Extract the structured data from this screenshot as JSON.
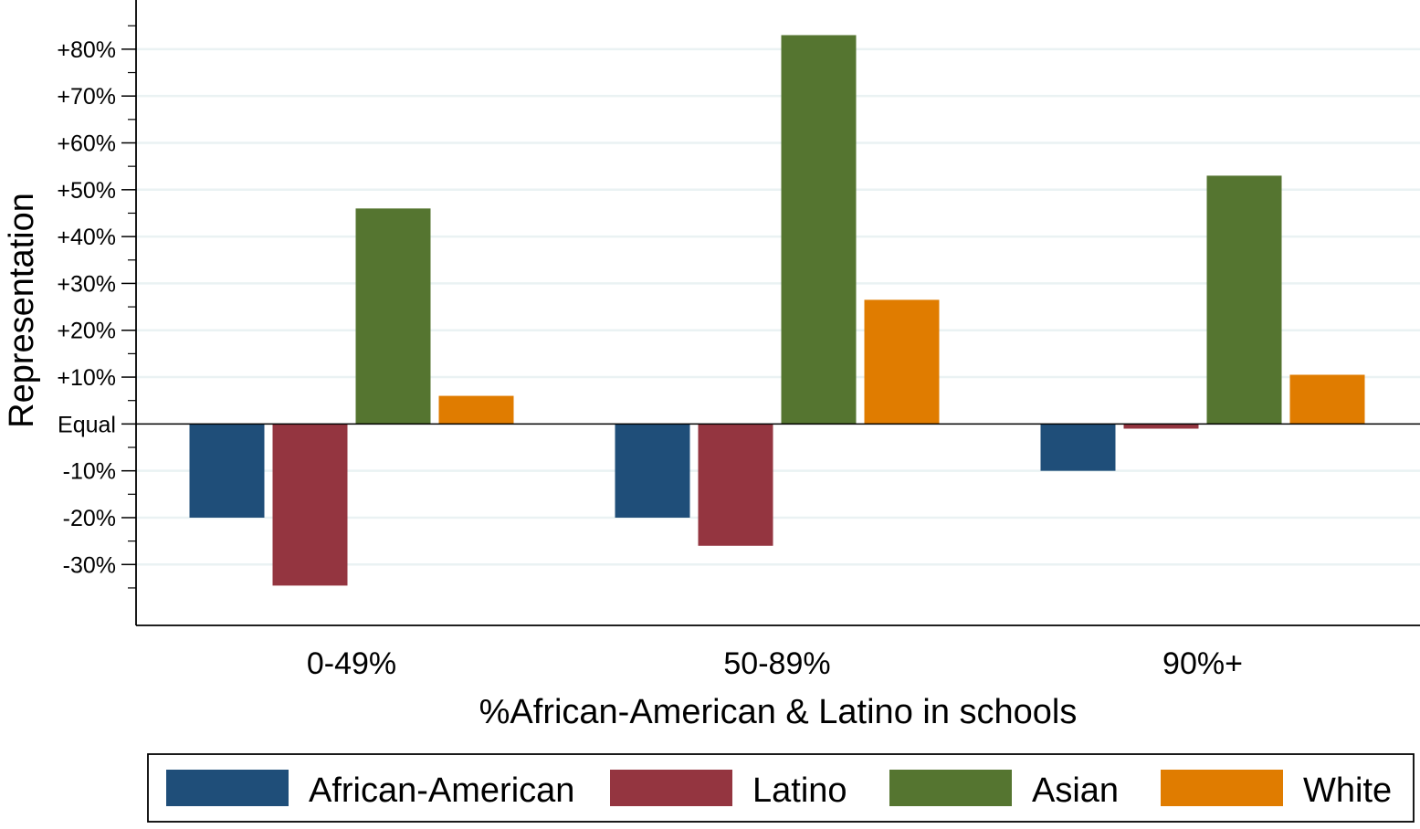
{
  "chart_data": {
    "type": "bar",
    "xlabel": "%African-American & Latino in schools",
    "ylabel": "Representation",
    "categories": [
      "0-49%",
      "50-89%",
      "90%+"
    ],
    "series": [
      {
        "name": "African-American",
        "color": "#1f4e79",
        "values": [
          -20,
          -20,
          -10
        ]
      },
      {
        "name": "Latino",
        "color": "#943540",
        "values": [
          -34.5,
          -26,
          -1
        ]
      },
      {
        "name": "Asian",
        "color": "#557530",
        "values": [
          46,
          83,
          53
        ]
      },
      {
        "name": "White",
        "color": "#e07c00",
        "values": [
          6,
          26.5,
          10.5
        ]
      }
    ],
    "yticks": [
      {
        "value": 80,
        "label": "+80%"
      },
      {
        "value": 70,
        "label": "+70%"
      },
      {
        "value": 60,
        "label": "+60%"
      },
      {
        "value": 50,
        "label": "+50%"
      },
      {
        "value": 40,
        "label": "+40%"
      },
      {
        "value": 30,
        "label": "+30%"
      },
      {
        "value": 20,
        "label": "+20%"
      },
      {
        "value": 10,
        "label": "+10%"
      },
      {
        "value": 0,
        "label": "Equal"
      },
      {
        "value": -10,
        "label": "-10%"
      },
      {
        "value": -20,
        "label": "-20%"
      },
      {
        "value": -30,
        "label": "-30%"
      }
    ],
    "ylim": [
      -43,
      90.5
    ],
    "grid": true,
    "grid_color": "#eaf2f3",
    "legend_position": "bottom"
  }
}
